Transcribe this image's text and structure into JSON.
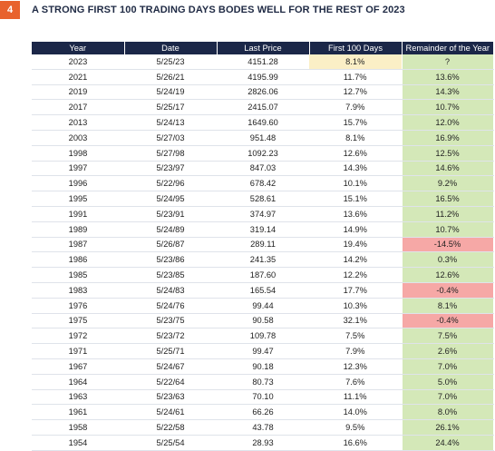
{
  "badge": "4",
  "title": "A STRONG FIRST 100 TRADING DAYS BODES WELL FOR THE REST OF 2023",
  "colors": {
    "header_bg": "#1b2748",
    "badge_bg": "#e8622d",
    "positive_cell": "#d4e8b8",
    "negative_cell": "#f6a8a6",
    "highlight_cell": "#fbefc6"
  },
  "table": {
    "headers": [
      "Year",
      "Date",
      "Last Price",
      "First 100 Days",
      "Remainder of the Year"
    ],
    "rows": [
      {
        "year": "2023",
        "date": "5/25/23",
        "price": "4151.28",
        "first100": "8.1%",
        "remainder": "?",
        "neg": false,
        "hl": true
      },
      {
        "year": "2021",
        "date": "5/26/21",
        "price": "4195.99",
        "first100": "11.7%",
        "remainder": "13.6%",
        "neg": false
      },
      {
        "year": "2019",
        "date": "5/24/19",
        "price": "2826.06",
        "first100": "12.7%",
        "remainder": "14.3%",
        "neg": false
      },
      {
        "year": "2017",
        "date": "5/25/17",
        "price": "2415.07",
        "first100": "7.9%",
        "remainder": "10.7%",
        "neg": false
      },
      {
        "year": "2013",
        "date": "5/24/13",
        "price": "1649.60",
        "first100": "15.7%",
        "remainder": "12.0%",
        "neg": false
      },
      {
        "year": "2003",
        "date": "5/27/03",
        "price": "951.48",
        "first100": "8.1%",
        "remainder": "16.9%",
        "neg": false
      },
      {
        "year": "1998",
        "date": "5/27/98",
        "price": "1092.23",
        "first100": "12.6%",
        "remainder": "12.5%",
        "neg": false
      },
      {
        "year": "1997",
        "date": "5/23/97",
        "price": "847.03",
        "first100": "14.3%",
        "remainder": "14.6%",
        "neg": false
      },
      {
        "year": "1996",
        "date": "5/22/96",
        "price": "678.42",
        "first100": "10.1%",
        "remainder": "9.2%",
        "neg": false
      },
      {
        "year": "1995",
        "date": "5/24/95",
        "price": "528.61",
        "first100": "15.1%",
        "remainder": "16.5%",
        "neg": false
      },
      {
        "year": "1991",
        "date": "5/23/91",
        "price": "374.97",
        "first100": "13.6%",
        "remainder": "11.2%",
        "neg": false
      },
      {
        "year": "1989",
        "date": "5/24/89",
        "price": "319.14",
        "first100": "14.9%",
        "remainder": "10.7%",
        "neg": false
      },
      {
        "year": "1987",
        "date": "5/26/87",
        "price": "289.11",
        "first100": "19.4%",
        "remainder": "-14.5%",
        "neg": true
      },
      {
        "year": "1986",
        "date": "5/23/86",
        "price": "241.35",
        "first100": "14.2%",
        "remainder": "0.3%",
        "neg": false
      },
      {
        "year": "1985",
        "date": "5/23/85",
        "price": "187.60",
        "first100": "12.2%",
        "remainder": "12.6%",
        "neg": false
      },
      {
        "year": "1983",
        "date": "5/24/83",
        "price": "165.54",
        "first100": "17.7%",
        "remainder": "-0.4%",
        "neg": true
      },
      {
        "year": "1976",
        "date": "5/24/76",
        "price": "99.44",
        "first100": "10.3%",
        "remainder": "8.1%",
        "neg": false
      },
      {
        "year": "1975",
        "date": "5/23/75",
        "price": "90.58",
        "first100": "32.1%",
        "remainder": "-0.4%",
        "neg": true
      },
      {
        "year": "1972",
        "date": "5/23/72",
        "price": "109.78",
        "first100": "7.5%",
        "remainder": "7.5%",
        "neg": false
      },
      {
        "year": "1971",
        "date": "5/25/71",
        "price": "99.47",
        "first100": "7.9%",
        "remainder": "2.6%",
        "neg": false
      },
      {
        "year": "1967",
        "date": "5/24/67",
        "price": "90.18",
        "first100": "12.3%",
        "remainder": "7.0%",
        "neg": false
      },
      {
        "year": "1964",
        "date": "5/22/64",
        "price": "80.73",
        "first100": "7.6%",
        "remainder": "5.0%",
        "neg": false
      },
      {
        "year": "1963",
        "date": "5/23/63",
        "price": "70.10",
        "first100": "11.1%",
        "remainder": "7.0%",
        "neg": false
      },
      {
        "year": "1961",
        "date": "5/24/61",
        "price": "66.26",
        "first100": "14.0%",
        "remainder": "8.0%",
        "neg": false
      },
      {
        "year": "1958",
        "date": "5/22/58",
        "price": "43.78",
        "first100": "9.5%",
        "remainder": "26.1%",
        "neg": false
      },
      {
        "year": "1954",
        "date": "5/25/54",
        "price": "28.93",
        "first100": "16.6%",
        "remainder": "24.4%",
        "neg": false
      }
    ]
  }
}
